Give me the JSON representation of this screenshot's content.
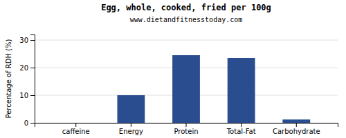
{
  "chart_data": {
    "type": "bar",
    "title": "Egg, whole, cooked, fried per 100g",
    "subtitle": "www.dietandfitnesstoday.com",
    "categories": [
      "caffeine",
      "Energy",
      "Protein",
      "Total-Fat",
      "Carbohydrate"
    ],
    "values": [
      0,
      10,
      24.5,
      23.5,
      1.2
    ],
    "color": "#2a4d8f",
    "ylabel": "Percentage of RDH (%)",
    "ylim": [
      0,
      32
    ],
    "yticks": [
      0,
      10,
      20,
      30
    ],
    "grid": true
  }
}
